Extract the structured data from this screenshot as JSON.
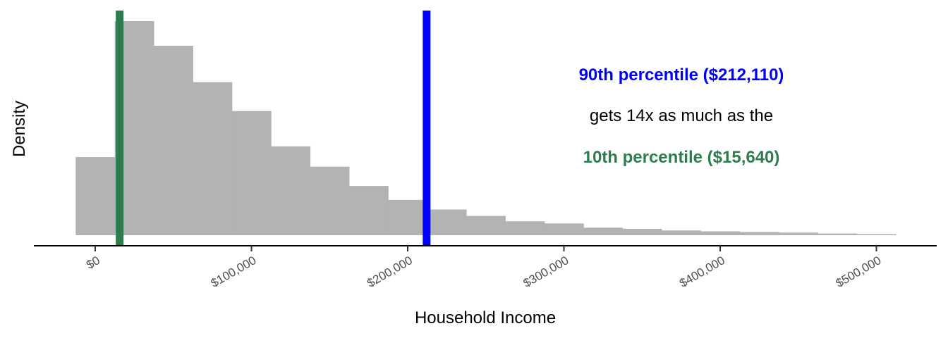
{
  "chart_data": {
    "type": "histogram",
    "xlabel": "Household Income",
    "ylabel": "Density",
    "x_ticks": [
      0,
      100000,
      200000,
      300000,
      400000,
      500000
    ],
    "x_tick_labels": [
      "$0",
      "$100,000",
      "$200,000",
      "$300,000",
      "$400,000",
      "$500,000"
    ],
    "xlim": [
      -35000,
      540000
    ],
    "ylim": [
      0,
      1.0
    ],
    "bin_width": 25000,
    "bins_x_start": [
      -12500,
      12500,
      37500,
      62500,
      87500,
      112500,
      137500,
      162500,
      187500,
      212500,
      237500,
      262500,
      287500,
      312500,
      337500,
      362500,
      387500,
      412500,
      437500,
      462500,
      487500
    ],
    "bins_density": [
      0.365,
      1.0,
      0.885,
      0.715,
      0.58,
      0.415,
      0.32,
      0.23,
      0.165,
      0.12,
      0.09,
      0.065,
      0.055,
      0.035,
      0.03,
      0.022,
      0.018,
      0.015,
      0.012,
      0.008,
      0.005
    ],
    "bar_color": "#b3b3b3",
    "reference_lines": [
      {
        "name": "10th percentile",
        "x": 15640,
        "color": "#2e7d4f"
      },
      {
        "name": "90th percentile",
        "x": 212110,
        "color": "#0000ff"
      }
    ],
    "annotations": {
      "line1": "90th percentile ($212,110)",
      "line2": "gets 14x as much as the",
      "line3": "10th percentile ($15,640)",
      "line1_color": "#0000ff",
      "line2_color": "#000000",
      "line3_color": "#2e7d4f"
    }
  }
}
